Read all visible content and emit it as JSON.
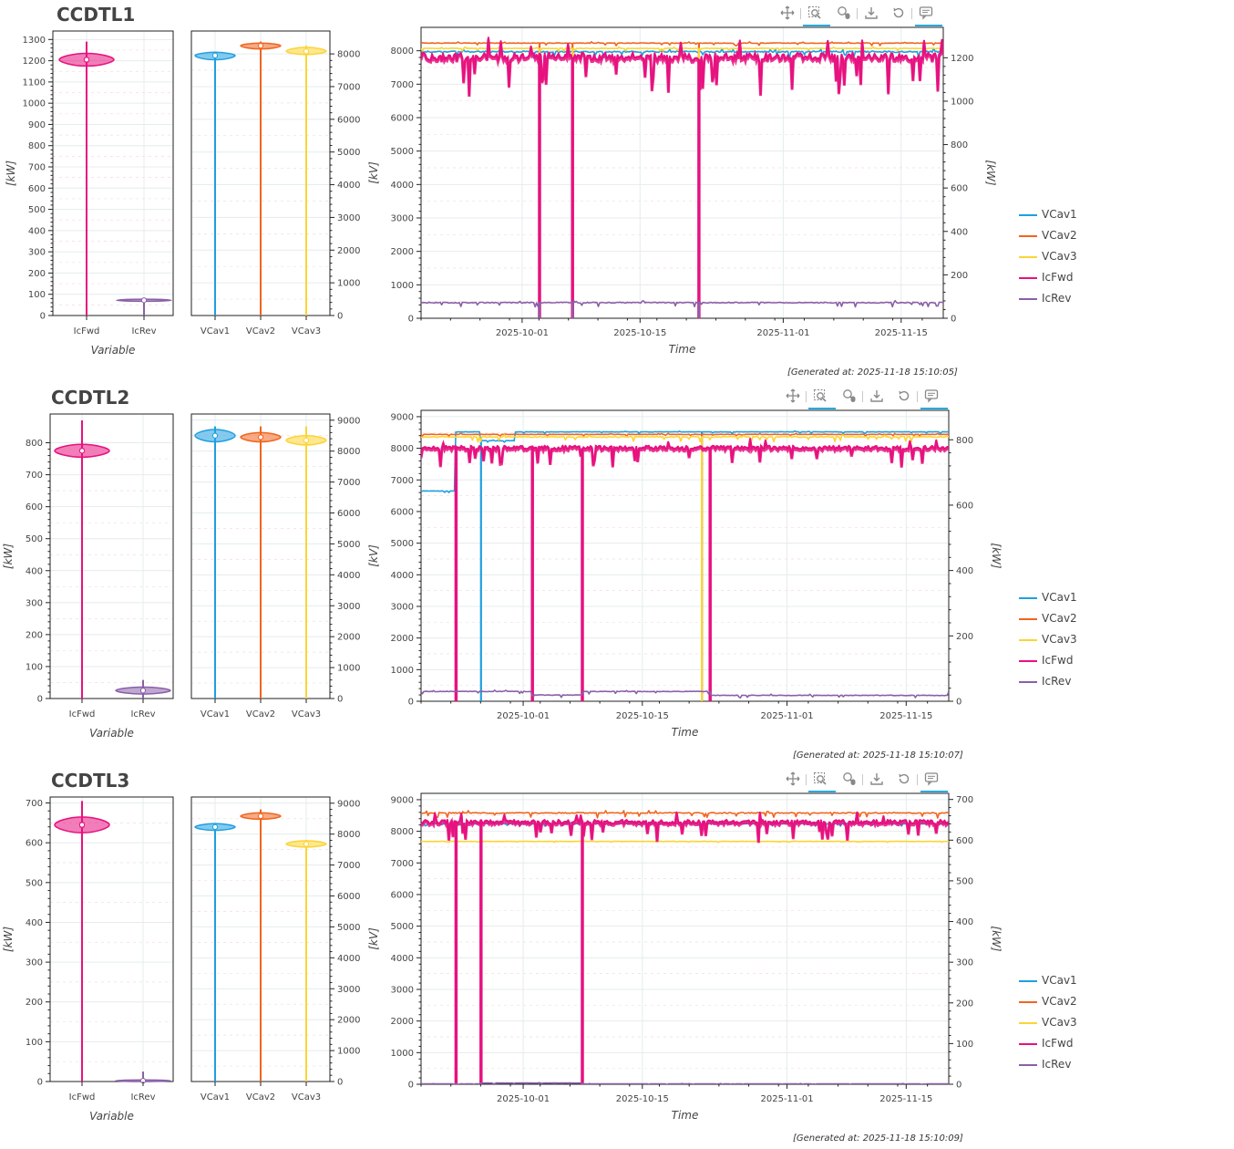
{
  "colors": {
    "VCav1": "#1f9fe0",
    "VCav2": "#f0651e",
    "VCav3": "#fcd434",
    "IcFwd": "#e6127f",
    "IcRev": "#8a5fa8",
    "grid": "#e4ecec",
    "toolbar_active": "#26aae1"
  },
  "toolbar": {
    "icons": [
      "pan-icon",
      "box-zoom-icon",
      "wheel-zoom-icon",
      "save-icon",
      "reset-icon",
      "hover-icon"
    ]
  },
  "panels": [
    {
      "title": "CCDTL1",
      "generated": "[Generated at: 2025-11-18 15:10:05]",
      "legend": [
        "VCav1",
        "VCav2",
        "VCav3",
        "IcFwd",
        "IcRev"
      ]
    },
    {
      "title": "CCDTL2",
      "generated": "[Generated at: 2025-11-18 15:10:07]",
      "legend": [
        "VCav1",
        "VCav2",
        "VCav3",
        "IcFwd",
        "IcRev"
      ]
    },
    {
      "title": "CCDTL3",
      "generated": "[Generated at: 2025-11-18 15:10:09]",
      "legend": [
        "VCav1",
        "VCav2",
        "VCav3",
        "IcFwd",
        "IcRev"
      ]
    }
  ],
  "chart_data": [
    {
      "panel": "CCDTL1",
      "chart": "power-violin",
      "type": "violin",
      "xlabel": "Variable",
      "ylabel": "[kW]",
      "ylim": [
        0,
        1340
      ],
      "yticks": [
        0,
        100,
        200,
        300,
        400,
        500,
        600,
        700,
        800,
        900,
        1000,
        1100,
        1200,
        1300
      ],
      "categories": [
        "IcFwd",
        "IcRev"
      ],
      "series": [
        {
          "name": "IcFwd",
          "median": 1205,
          "q1": 1193,
          "q3": 1215,
          "body_min": 1175,
          "body_max": 1235,
          "min": 0,
          "max": 1290
        },
        {
          "name": "IcRev",
          "median": 72,
          "q1": 70,
          "q3": 74,
          "body_min": 67,
          "body_max": 77,
          "min": 0,
          "max": 77
        }
      ]
    },
    {
      "panel": "CCDTL1",
      "chart": "voltage-violin",
      "type": "violin",
      "ylabel_right": "",
      "ylim": [
        0,
        8700
      ],
      "yticks": [
        0,
        1000,
        2000,
        3000,
        4000,
        5000,
        6000,
        7000,
        8000
      ],
      "categories": [
        "VCav1",
        "VCav2",
        "VCav3"
      ],
      "series": [
        {
          "name": "VCav1",
          "median": 7950,
          "q1": 7930,
          "q3": 7970,
          "body_min": 7820,
          "body_max": 8050,
          "min": 0,
          "max": 8050
        },
        {
          "name": "VCav2",
          "median": 8250,
          "q1": 8235,
          "q3": 8265,
          "body_min": 8150,
          "body_max": 8330,
          "min": 0,
          "max": 8380
        },
        {
          "name": "VCav3",
          "median": 8080,
          "q1": 8060,
          "q3": 8100,
          "body_min": 7980,
          "body_max": 8200,
          "min": 0,
          "max": 8250
        }
      ]
    },
    {
      "panel": "CCDTL1",
      "chart": "timeseries",
      "type": "line",
      "xlabel": "Time",
      "ylabel": "[kV]",
      "ylabel_right": "[kW]",
      "xlim": [
        "2025-09-19",
        "2025-11-20"
      ],
      "xticks": [
        "2025-10-01",
        "2025-10-15",
        "2025-11-01",
        "2025-11-15"
      ],
      "ylim": [
        0,
        8700
      ],
      "yticks": [
        0,
        1000,
        2000,
        3000,
        4000,
        5000,
        6000,
        7000,
        8000
      ],
      "ylim_right": [
        0,
        1340
      ],
      "yticks_right": [
        0,
        200,
        400,
        600,
        800,
        1000,
        1200
      ],
      "series": [
        {
          "name": "VCav1",
          "axis": "left",
          "base": 7970,
          "noise": 50,
          "segments": [],
          "drops": [
            "2025-10-03",
            "2025-10-07",
            "2025-10-22"
          ]
        },
        {
          "name": "VCav2",
          "axis": "left",
          "base": 8230,
          "noise": 20,
          "segments": [],
          "drops": [
            "2025-10-03",
            "2025-10-07",
            "2025-10-22"
          ]
        },
        {
          "name": "VCav3",
          "axis": "left",
          "base": 8070,
          "noise": 20,
          "segments": [],
          "drops": [
            "2025-10-03",
            "2025-10-07",
            "2025-10-22"
          ]
        },
        {
          "name": "IcFwd",
          "axis": "right",
          "base": 1205,
          "noise": 45,
          "segments": [],
          "drops": [
            "2025-10-03",
            "2025-10-07",
            "2025-10-22"
          ]
        },
        {
          "name": "IcRev",
          "axis": "right",
          "base": 72,
          "noise": 5,
          "segments": [],
          "drops": [
            "2025-10-03",
            "2025-10-07",
            "2025-10-22"
          ]
        }
      ]
    },
    {
      "panel": "CCDTL2",
      "chart": "power-violin",
      "type": "violin",
      "xlabel": "Variable",
      "ylabel": "[kW]",
      "ylim": [
        0,
        890
      ],
      "yticks": [
        0,
        100,
        200,
        300,
        400,
        500,
        600,
        700,
        800
      ],
      "categories": [
        "IcFwd",
        "IcRev"
      ],
      "series": [
        {
          "name": "IcFwd",
          "median": 775,
          "q1": 770,
          "q3": 782,
          "body_min": 755,
          "body_max": 795,
          "min": 0,
          "max": 870
        },
        {
          "name": "IcRev",
          "median": 25,
          "q1": 20,
          "q3": 31,
          "body_min": 14,
          "body_max": 36,
          "min": 0,
          "max": 58
        }
      ]
    },
    {
      "panel": "CCDTL2",
      "chart": "voltage-violin",
      "type": "violin",
      "ylim": [
        0,
        9200
      ],
      "yticks": [
        0,
        1000,
        2000,
        3000,
        4000,
        5000,
        6000,
        7000,
        8000,
        9000
      ],
      "categories": [
        "VCav1",
        "VCav2",
        "VCav3"
      ],
      "series": [
        {
          "name": "VCav1",
          "median": 8500,
          "q1": 8480,
          "q3": 8520,
          "body_min": 8300,
          "body_max": 8700,
          "min": 0,
          "max": 8800
        },
        {
          "name": "VCav2",
          "median": 8450,
          "q1": 8430,
          "q3": 8470,
          "body_min": 8300,
          "body_max": 8600,
          "min": 0,
          "max": 8800
        },
        {
          "name": "VCav3",
          "median": 8350,
          "q1": 8330,
          "q3": 8370,
          "body_min": 8200,
          "body_max": 8500,
          "min": 0,
          "max": 8800
        }
      ]
    },
    {
      "panel": "CCDTL2",
      "chart": "timeseries",
      "type": "line",
      "xlabel": "Time",
      "ylabel": "[kV]",
      "ylabel_right": "[kW]",
      "xlim": [
        "2025-09-19",
        "2025-11-20"
      ],
      "xticks": [
        "2025-10-01",
        "2025-10-15",
        "2025-11-01",
        "2025-11-15"
      ],
      "ylim": [
        0,
        9200
      ],
      "yticks": [
        0,
        1000,
        2000,
        3000,
        4000,
        5000,
        6000,
        7000,
        8000,
        9000
      ],
      "ylim_right": [
        0,
        890
      ],
      "yticks_right": [
        0,
        200,
        400,
        600,
        800
      ],
      "series": [
        {
          "name": "VCav1",
          "axis": "left",
          "base": 8520,
          "noise": 15,
          "segments": [
            [
              "2025-09-19",
              "2025-09-23",
              6650
            ],
            [
              "2025-09-26",
              "2025-09-29",
              8240
            ],
            [
              "2025-09-29",
              "2025-09-30",
              8240
            ]
          ],
          "drops": [
            "2025-09-26",
            "2025-10-22"
          ]
        },
        {
          "name": "VCav2",
          "axis": "left",
          "base": 8440,
          "noise": 15,
          "segments": [],
          "drops": [
            "2025-10-22"
          ]
        },
        {
          "name": "VCav3",
          "axis": "left",
          "base": 8360,
          "noise": 40,
          "segments": [],
          "drops": [
            "2025-10-22"
          ]
        },
        {
          "name": "IcFwd",
          "axis": "right",
          "base": 776,
          "noise": 14,
          "segments": [],
          "drops": [
            "2025-09-23",
            "2025-10-02",
            "2025-10-08",
            "2025-10-23"
          ]
        },
        {
          "name": "IcRev",
          "axis": "right",
          "base": 30,
          "noise": 2,
          "segments": [
            [
              "2025-10-02",
              "2025-10-08",
              19
            ],
            [
              "2025-10-23",
              "2025-11-20",
              18
            ]
          ],
          "drops": []
        }
      ]
    },
    {
      "panel": "CCDTL3",
      "chart": "power-violin",
      "type": "violin",
      "xlabel": "Variable",
      "ylabel": "[kW]",
      "ylim": [
        0,
        715
      ],
      "yticks": [
        0,
        100,
        200,
        300,
        400,
        500,
        600,
        700
      ],
      "categories": [
        "IcFwd",
        "IcRev"
      ],
      "series": [
        {
          "name": "IcFwd",
          "median": 645,
          "q1": 638,
          "q3": 652,
          "body_min": 625,
          "body_max": 665,
          "min": 0,
          "max": 705
        },
        {
          "name": "IcRev",
          "median": 2,
          "q1": 1,
          "q3": 3,
          "body_min": 0,
          "body_max": 4,
          "min": 0,
          "max": 25
        }
      ]
    },
    {
      "panel": "CCDTL3",
      "chart": "voltage-violin",
      "type": "violin",
      "ylim": [
        0,
        9200
      ],
      "yticks": [
        0,
        1000,
        2000,
        3000,
        4000,
        5000,
        6000,
        7000,
        8000,
        9000
      ],
      "categories": [
        "VCav1",
        "VCav2",
        "VCav3"
      ],
      "series": [
        {
          "name": "VCav1",
          "median": 8230,
          "q1": 8210,
          "q3": 8250,
          "body_min": 8120,
          "body_max": 8340,
          "min": 0,
          "max": 8350
        },
        {
          "name": "VCav2",
          "median": 8580,
          "q1": 8560,
          "q3": 8600,
          "body_min": 8480,
          "body_max": 8690,
          "min": 0,
          "max": 8800
        },
        {
          "name": "VCav3",
          "median": 7680,
          "q1": 7660,
          "q3": 7700,
          "body_min": 7580,
          "body_max": 7790,
          "min": 0,
          "max": 7800
        }
      ]
    },
    {
      "panel": "CCDTL3",
      "chart": "timeseries",
      "type": "line",
      "xlabel": "Time",
      "ylabel": "[kV]",
      "ylabel_right": "[kW]",
      "xlim": [
        "2025-09-19",
        "2025-11-20"
      ],
      "xticks": [
        "2025-10-01",
        "2025-10-15",
        "2025-11-01",
        "2025-11-15"
      ],
      "ylim": [
        0,
        9200
      ],
      "yticks": [
        0,
        1000,
        2000,
        3000,
        4000,
        5000,
        6000,
        7000,
        8000,
        9000
      ],
      "ylim_right": [
        0,
        715
      ],
      "yticks_right": [
        0,
        100,
        200,
        300,
        400,
        500,
        600,
        700
      ],
      "series": [
        {
          "name": "VCav1",
          "axis": "left",
          "base": 8240,
          "noise": 20,
          "segments": [],
          "drops": []
        },
        {
          "name": "VCav2",
          "axis": "left",
          "base": 8580,
          "noise": 40,
          "segments": [],
          "drops": []
        },
        {
          "name": "VCav3",
          "axis": "left",
          "base": 7680,
          "noise": 8,
          "segments": [],
          "drops": []
        },
        {
          "name": "IcFwd",
          "axis": "right",
          "base": 645,
          "noise": 12,
          "segments": [],
          "drops": [
            "2025-09-23",
            "2025-09-26",
            "2025-10-08"
          ]
        },
        {
          "name": "IcRev",
          "axis": "right",
          "base": 1,
          "noise": 0.5,
          "segments": [
            [
              "2025-09-26",
              "2025-10-08",
              3
            ]
          ],
          "drops": []
        }
      ]
    }
  ]
}
